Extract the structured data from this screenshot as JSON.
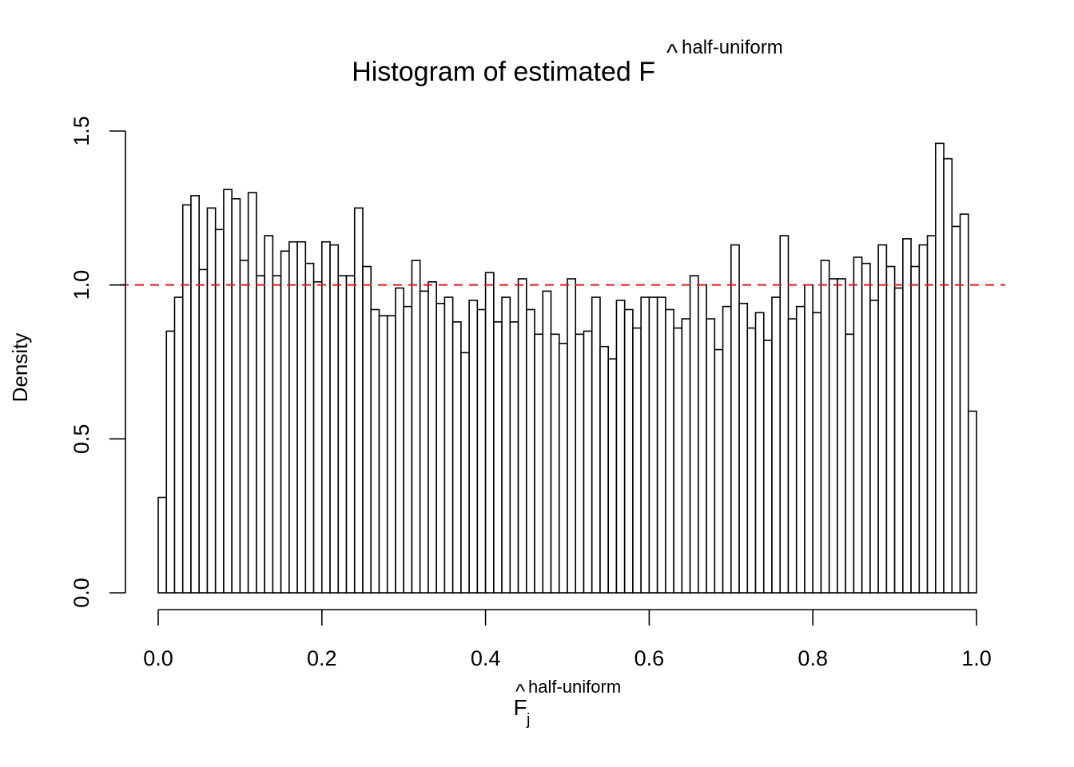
{
  "chart_data": {
    "type": "bar",
    "title": "Histogram of estimated F",
    "title_hat_superscript": "half-uniform",
    "xlabel": "F",
    "xlabel_subscript": "j",
    "xlabel_superscript": "half-uniform",
    "ylabel": "Density",
    "xlim": [
      0,
      1
    ],
    "ylim": [
      0,
      1.5
    ],
    "x_ticks": [
      "0.0",
      "0.2",
      "0.4",
      "0.6",
      "0.8",
      "1.0"
    ],
    "y_ticks": [
      "0.0",
      "0.5",
      "1.0",
      "1.5"
    ],
    "bin_width": 0.01,
    "values": [
      0.31,
      0.85,
      0.96,
      1.26,
      1.29,
      1.05,
      1.25,
      1.18,
      1.31,
      1.28,
      1.08,
      1.3,
      1.03,
      1.16,
      1.03,
      1.11,
      1.14,
      1.14,
      1.07,
      1.01,
      1.14,
      1.13,
      1.03,
      1.03,
      1.25,
      1.06,
      0.92,
      0.9,
      0.9,
      0.99,
      0.93,
      1.08,
      0.98,
      1.01,
      0.94,
      0.96,
      0.88,
      0.78,
      0.95,
      0.92,
      1.04,
      0.88,
      0.96,
      0.88,
      1.02,
      0.92,
      0.84,
      0.98,
      0.84,
      0.81,
      1.02,
      0.84,
      0.85,
      0.96,
      0.8,
      0.76,
      0.95,
      0.92,
      0.86,
      0.96,
      0.96,
      0.96,
      0.92,
      0.86,
      0.89,
      1.03,
      1.0,
      0.89,
      0.79,
      0.93,
      1.13,
      0.94,
      0.86,
      0.91,
      0.82,
      0.96,
      1.16,
      0.89,
      0.93,
      1.0,
      0.91,
      1.08,
      1.02,
      1.02,
      0.84,
      1.09,
      1.07,
      0.95,
      1.13,
      1.06,
      0.99,
      1.15,
      1.06,
      1.13,
      1.16,
      1.46,
      1.41,
      1.19,
      1.23,
      0.59
    ],
    "reference_line": {
      "y": 1.0,
      "color": "#e41a1c",
      "style": "dashed"
    },
    "bar_fill": "#ffffff",
    "bar_stroke": "#000000",
    "grid": false
  }
}
